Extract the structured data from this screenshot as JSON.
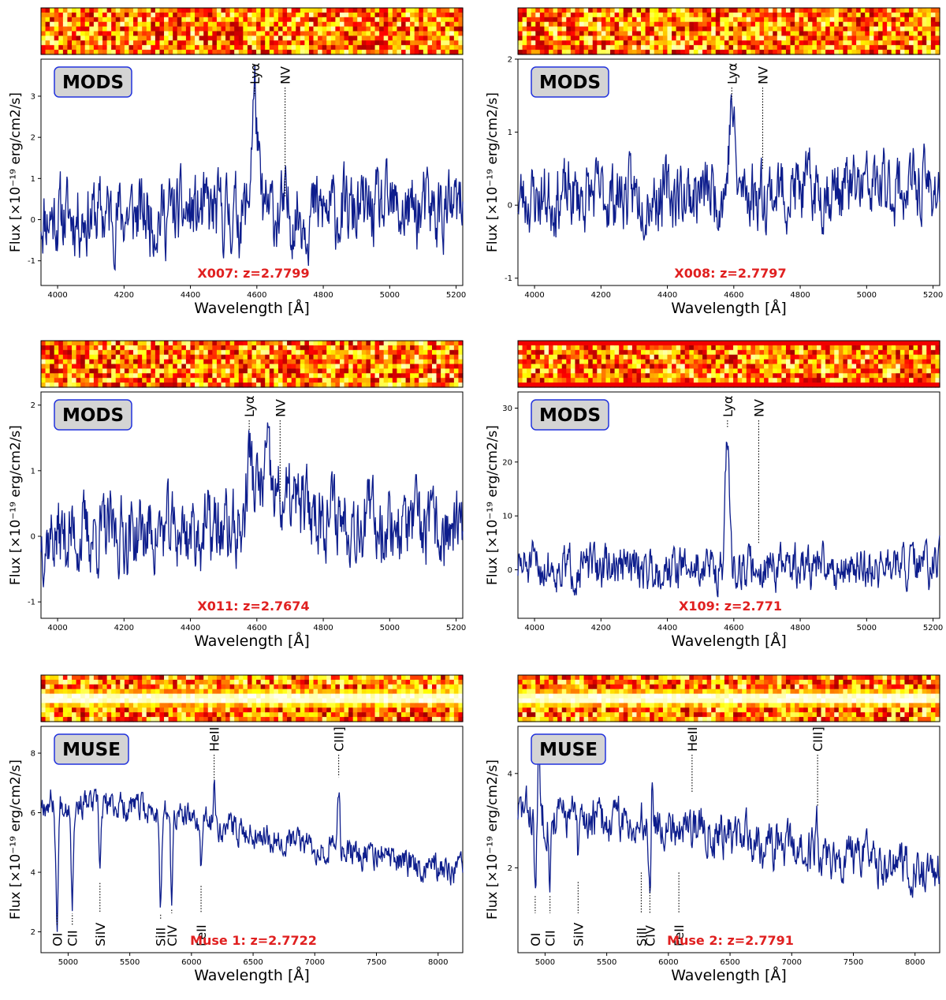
{
  "chart_data": [
    {
      "type": "line",
      "instrument": "MODS",
      "label": "X007: z=2.7799",
      "xlabel": "Wavelength [Å]",
      "ylabel": "Flux [×10⁻¹⁹ erg/cm2/s]",
      "xlim": [
        3950,
        5220
      ],
      "ylim": [
        -1.6,
        3.9
      ],
      "xticks": [
        4000,
        4200,
        4400,
        4600,
        4800,
        5000,
        5200
      ],
      "yticks": [
        -1,
        0,
        1,
        2,
        3
      ],
      "noise": 0.55,
      "continuum": [
        [
          3950,
          0.1
        ],
        [
          5220,
          0.2
        ]
      ],
      "peaks": [
        {
          "x": 4593,
          "a": 2.9,
          "w": 9
        }
      ],
      "lines": [
        {
          "name": "Lyα",
          "x": 4593,
          "pos": "top",
          "y": 3.0
        },
        {
          "name": "NV",
          "x": 4685,
          "pos": "top",
          "y": 0.55
        }
      ],
      "image": {
        "palette": "hot",
        "trace": false
      },
      "seed": 11
    },
    {
      "type": "line",
      "instrument": "MODS",
      "label": "X008: z=2.7797",
      "xlabel": "Wavelength [Å]",
      "ylabel": "Flux [×10⁻¹⁹ erg/cm2/s]",
      "xlim": [
        3950,
        5220
      ],
      "ylim": [
        -1.1,
        2.0
      ],
      "xticks": [
        4000,
        4200,
        4400,
        4600,
        4800,
        5000,
        5200
      ],
      "yticks": [
        -1,
        0,
        1,
        2
      ],
      "noise": 0.28,
      "continuum": [
        [
          3950,
          0.1
        ],
        [
          5220,
          0.25
        ]
      ],
      "peaks": [
        {
          "x": 4594,
          "a": 1.2,
          "w": 8
        }
      ],
      "lines": [
        {
          "name": "Lyα",
          "x": 4594,
          "pos": "top",
          "y": 1.45
        },
        {
          "name": "NV",
          "x": 4687,
          "pos": "top",
          "y": 0.5
        }
      ],
      "image": {
        "palette": "hot",
        "trace": false
      },
      "seed": 23
    },
    {
      "type": "line",
      "instrument": "MODS",
      "label": "X011: z=2.7674",
      "xlabel": "Wavelength [Å]",
      "ylabel": "Flux [×10⁻¹⁹ erg/cm2/s]",
      "xlim": [
        3950,
        5220
      ],
      "ylim": [
        -1.25,
        2.2
      ],
      "xticks": [
        4000,
        4200,
        4400,
        4600,
        4800,
        5000,
        5200
      ],
      "yticks": [
        -1,
        0,
        1,
        2
      ],
      "noise": 0.35,
      "continuum": [
        [
          3950,
          0.0
        ],
        [
          4560,
          0.1
        ],
        [
          4600,
          0.7
        ],
        [
          4720,
          0.45
        ],
        [
          5220,
          0.0
        ]
      ],
      "peaks": [
        {
          "x": 4577,
          "a": 0.9,
          "w": 8
        },
        {
          "x": 4630,
          "a": 0.5,
          "w": 8
        }
      ],
      "lines": [
        {
          "name": "Lyα",
          "x": 4577,
          "pos": "top",
          "y": 1.6
        },
        {
          "name": "NV",
          "x": 4670,
          "pos": "top",
          "y": 0.5
        }
      ],
      "image": {
        "palette": "hot",
        "trace": false
      },
      "seed": 37
    },
    {
      "type": "line",
      "instrument": "MODS",
      "label": "X109: z=2.771",
      "xlabel": "Wavelength [Å]",
      "ylabel": "Flux [×10⁻¹⁹ erg/cm2/s]",
      "xlim": [
        3950,
        5220
      ],
      "ylim": [
        -9,
        33
      ],
      "xticks": [
        4000,
        4200,
        4400,
        4600,
        4800,
        5000,
        5200
      ],
      "yticks": [
        0,
        10,
        20,
        30
      ],
      "noise": 2.4,
      "continuum": [
        [
          3950,
          0.5
        ],
        [
          5220,
          0.5
        ]
      ],
      "peaks": [
        {
          "x": 4581,
          "a": 24,
          "w": 6
        }
      ],
      "lines": [
        {
          "name": "Lyα",
          "x": 4581,
          "pos": "top",
          "y": 26.5
        },
        {
          "name": "NV",
          "x": 4675,
          "pos": "top",
          "y": 5.0
        }
      ],
      "image": {
        "palette": "hot",
        "trace": false,
        "bands": true
      },
      "seed": 51
    },
    {
      "type": "line",
      "instrument": "MUSE",
      "label": "Muse 1: z=2.7722",
      "xlabel": "Wavelength [Å]",
      "ylabel": "Flux [×10⁻¹⁹ erg/cm2/s]",
      "xlim": [
        4780,
        8200
      ],
      "ylim": [
        1.3,
        8.9
      ],
      "xticks": [
        5000,
        5500,
        6000,
        6500,
        7000,
        7500,
        8000
      ],
      "yticks": [
        2,
        4,
        6,
        8
      ],
      "noise": 0.28,
      "continuum": [
        [
          4780,
          6.4
        ],
        [
          5500,
          6.2
        ],
        [
          6200,
          5.6
        ],
        [
          7000,
          4.9
        ],
        [
          8200,
          4.0
        ]
      ],
      "peaks": [
        {
          "x": 4910,
          "a": -4.0,
          "w": 10
        },
        {
          "x": 5034,
          "a": -3.4,
          "w": 8
        },
        {
          "x": 5258,
          "a": -2.0,
          "w": 9
        },
        {
          "x": 5750,
          "a": -3.0,
          "w": 8
        },
        {
          "x": 5840,
          "a": -3.0,
          "w": 8
        },
        {
          "x": 6078,
          "a": -1.6,
          "w": 8
        },
        {
          "x": 6184,
          "a": 1.2,
          "w": 9
        },
        {
          "x": 7194,
          "a": 2.2,
          "w": 9
        }
      ],
      "lines": [
        {
          "name": "OI",
          "x": 4910,
          "pos": "bottom",
          "y": 2.4
        },
        {
          "name": "CII",
          "x": 5034,
          "pos": "bottom",
          "y": 2.4
        },
        {
          "name": "SiIV",
          "x": 5258,
          "pos": "bottom",
          "y": 3.8
        },
        {
          "name": "SiII",
          "x": 5750,
          "pos": "bottom",
          "y": 2.6
        },
        {
          "name": "CIV",
          "x": 5840,
          "pos": "bottom",
          "y": 2.9
        },
        {
          "name": "FeII",
          "x": 6078,
          "pos": "bottom",
          "y": 3.7
        },
        {
          "name": "HeII",
          "x": 6184,
          "pos": "top",
          "y": 7.1
        },
        {
          "name": "CIII]",
          "x": 7194,
          "pos": "top",
          "y": 7.2
        }
      ],
      "image": {
        "palette": "hot",
        "trace": true
      },
      "seed": 67
    },
    {
      "type": "line",
      "instrument": "MUSE",
      "label": "Muse 2: z=2.7791",
      "xlabel": "Wavelength [Å]",
      "ylabel": "Flux [×10⁻¹⁹ erg/cm2/s]",
      "xlim": [
        4780,
        8200
      ],
      "ylim": [
        0.2,
        5.0
      ],
      "xticks": [
        5000,
        5500,
        6000,
        6500,
        7000,
        7500,
        8000
      ],
      "yticks": [
        2,
        4
      ],
      "noise": 0.28,
      "continuum": [
        [
          4780,
          3.2
        ],
        [
          5500,
          3.0
        ],
        [
          6200,
          2.9
        ],
        [
          7000,
          2.4
        ],
        [
          8200,
          1.9
        ]
      ],
      "peaks": [
        {
          "x": 4920,
          "a": -1.6,
          "w": 9
        },
        {
          "x": 4950,
          "a": 1.4,
          "w": 7
        },
        {
          "x": 5040,
          "a": -1.3,
          "w": 8
        },
        {
          "x": 5268,
          "a": -1.0,
          "w": 8
        },
        {
          "x": 5850,
          "a": -1.4,
          "w": 8
        },
        {
          "x": 5870,
          "a": 1.2,
          "w": 7
        },
        {
          "x": 7200,
          "a": 0.8,
          "w": 8
        }
      ],
      "lines": [
        {
          "name": "OI",
          "x": 4920,
          "pos": "bottom",
          "y": 1.5
        },
        {
          "name": "CII",
          "x": 5040,
          "pos": "bottom",
          "y": 1.5
        },
        {
          "name": "SiIV",
          "x": 5268,
          "pos": "bottom",
          "y": 1.8
        },
        {
          "name": "SiII",
          "x": 5780,
          "pos": "bottom",
          "y": 2.0
        },
        {
          "name": "CIV",
          "x": 5850,
          "pos": "bottom",
          "y": 1.7
        },
        {
          "name": "FeII",
          "x": 6085,
          "pos": "bottom",
          "y": 2.0
        },
        {
          "name": "HeII",
          "x": 6192,
          "pos": "top",
          "y": 3.6
        },
        {
          "name": "CIII]",
          "x": 7210,
          "pos": "top",
          "y": 3.3
        }
      ],
      "image": {
        "palette": "hot",
        "trace": true
      },
      "seed": 83
    }
  ]
}
